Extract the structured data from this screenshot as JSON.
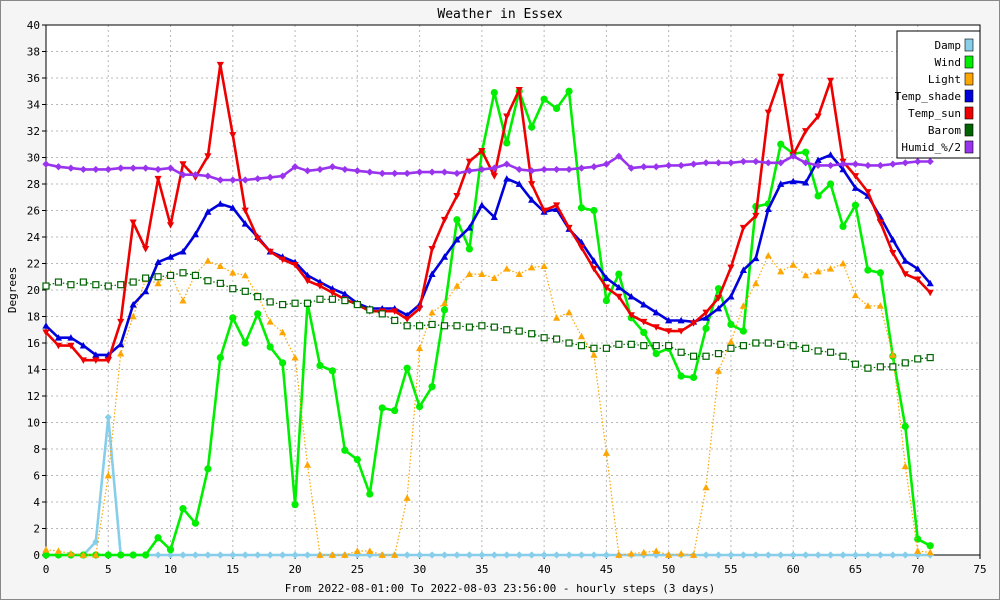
{
  "chart_data": {
    "type": "line",
    "title": "Weather in Essex",
    "xlabel": "From 2022-08-01:00 To 2022-08-03 23:56:00 - hourly steps (3 days)",
    "ylabel": "Degrees",
    "xlim": [
      0,
      75
    ],
    "ylim": [
      0,
      40
    ],
    "x_ticks": [
      0,
      5,
      10,
      15,
      20,
      25,
      30,
      35,
      40,
      45,
      50,
      55,
      60,
      65,
      70,
      75
    ],
    "y_ticks": [
      0,
      2,
      4,
      6,
      8,
      10,
      12,
      14,
      16,
      18,
      20,
      22,
      24,
      26,
      28,
      30,
      32,
      34,
      36,
      38,
      40
    ],
    "grid": true,
    "legend_position": "top-right",
    "x": [
      0,
      1,
      2,
      3,
      4,
      5,
      6,
      7,
      8,
      9,
      10,
      11,
      12,
      13,
      14,
      15,
      16,
      17,
      18,
      19,
      20,
      21,
      22,
      23,
      24,
      25,
      26,
      27,
      28,
      29,
      30,
      31,
      32,
      33,
      34,
      35,
      36,
      37,
      38,
      39,
      40,
      41,
      42,
      43,
      44,
      45,
      46,
      47,
      48,
      49,
      50,
      51,
      52,
      53,
      54,
      55,
      56,
      57,
      58,
      59,
      60,
      61,
      62,
      63,
      64,
      65,
      66,
      67,
      68,
      69,
      70,
      71
    ],
    "series": [
      {
        "name": "Damp",
        "color": "#87ceeb",
        "style": "solid",
        "marker": "diamond",
        "values": [
          0,
          0,
          0,
          0,
          1,
          10.4,
          0,
          0,
          0,
          0,
          0,
          0,
          0,
          0,
          0,
          0,
          0,
          0,
          0,
          0,
          0,
          0,
          0,
          0,
          0,
          0,
          0,
          0,
          0,
          0,
          0,
          0,
          0,
          0,
          0,
          0,
          0,
          0,
          0,
          0,
          0,
          0,
          0,
          0,
          0,
          0,
          0,
          0,
          0,
          0,
          0,
          0,
          0,
          0,
          0,
          0,
          0,
          0,
          0,
          0,
          0,
          0,
          0,
          0,
          0,
          0,
          0,
          0,
          0,
          0,
          0,
          0
        ]
      },
      {
        "name": "Wind",
        "color": "#00ee00",
        "style": "solid",
        "marker": "circle",
        "values": [
          0,
          0,
          0,
          0,
          0,
          0,
          0,
          0,
          0,
          1.3,
          0.4,
          3.5,
          2.4,
          6.5,
          14.9,
          17.9,
          16,
          18.2,
          15.7,
          14.5,
          3.8,
          19,
          14.3,
          13.9,
          7.9,
          7.2,
          4.6,
          11.1,
          10.9,
          14.1,
          11.2,
          12.7,
          18.5,
          25.3,
          23.1,
          30.4,
          34.9,
          31.1,
          35,
          32.3,
          34.4,
          33.7,
          35,
          26.2,
          26,
          19.2,
          21.2,
          17.9,
          16.8,
          15.2,
          15.6,
          13.5,
          13.4,
          17.1,
          20.1,
          17.4,
          16.9,
          26.3,
          26.5,
          31,
          30.3,
          30.4,
          27.1,
          28,
          24.8,
          26.4,
          21.5,
          21.3,
          15,
          9.7,
          1.2,
          0.7
        ]
      },
      {
        "name": "Light",
        "color": "#ffa500",
        "style": "dotted",
        "marker": "triangle-up",
        "values": [
          0.4,
          0.3,
          0.1,
          0,
          0,
          6,
          15.2,
          18,
          20.8,
          20.5,
          21.2,
          19.2,
          21.2,
          22.2,
          21.8,
          21.3,
          21.1,
          19.6,
          17.6,
          16.8,
          14.9,
          6.8,
          0,
          0,
          0,
          0.3,
          0.3,
          0,
          0,
          4.3,
          15.6,
          18.3,
          19,
          20.3,
          21.2,
          21.2,
          20.9,
          21.6,
          21.2,
          21.7,
          21.8,
          17.9,
          18.3,
          16.5,
          15.1,
          7.7,
          0,
          0.1,
          0.2,
          0.3,
          0,
          0.1,
          0,
          5.1,
          13.9,
          16.1,
          18.8,
          20.5,
          22.6,
          21.4,
          21.9,
          21.1,
          21.4,
          21.6,
          22,
          19.6,
          18.8,
          18.8,
          15.1,
          6.7,
          0.3,
          0.2
        ]
      },
      {
        "name": "Temp_shade",
        "color": "#0000dd",
        "style": "solid",
        "marker": "triangle-up",
        "values": [
          17.3,
          16.4,
          16.4,
          15.8,
          15.1,
          15.1,
          15.9,
          18.9,
          19.9,
          22.1,
          22.5,
          22.9,
          24.2,
          25.9,
          26.5,
          26.2,
          25,
          24,
          22.9,
          22.5,
          22.1,
          21.1,
          20.6,
          20.1,
          19.7,
          19,
          18.6,
          18.6,
          18.6,
          18.1,
          18.9,
          21.2,
          22.5,
          23.8,
          24.7,
          26.4,
          25.5,
          28.4,
          28,
          26.8,
          25.9,
          26.1,
          24.6,
          23.6,
          22.2,
          20.9,
          20.2,
          19.5,
          18.9,
          18.3,
          17.7,
          17.7,
          17.6,
          17.9,
          18.6,
          19.5,
          21.5,
          22.4,
          26.1,
          28,
          28.2,
          28.1,
          29.8,
          30.2,
          29.1,
          27.7,
          27.1,
          25.5,
          23.8,
          22.2,
          21.6,
          20.5
        ]
      },
      {
        "name": "Temp_sun",
        "color": "#ee0000",
        "style": "solid",
        "marker": "triangle-down",
        "values": [
          16.8,
          15.8,
          15.8,
          14.7,
          14.7,
          14.7,
          17.6,
          25.1,
          23.1,
          28.4,
          24.9,
          29.5,
          28.5,
          30.1,
          37,
          31.7,
          26,
          23.9,
          22.9,
          22.3,
          21.9,
          20.7,
          20.3,
          19.8,
          19.3,
          18.9,
          18.4,
          18.4,
          18.4,
          17.8,
          18.6,
          23.1,
          25.3,
          27.1,
          29.7,
          30.5,
          28.6,
          33.1,
          35.1,
          28,
          26,
          26.4,
          24.7,
          23.2,
          21.6,
          20.2,
          19.5,
          18.1,
          17.6,
          17.2,
          16.9,
          16.9,
          17.5,
          18.3,
          19.4,
          21.7,
          24.7,
          25.6,
          33.4,
          36.1,
          30.2,
          32,
          33.1,
          35.8,
          29.7,
          28.6,
          27.4,
          25.1,
          22.8,
          21.2,
          20.8,
          19.8
        ]
      },
      {
        "name": "Barom",
        "color": "#006400",
        "style": "dotted",
        "marker": "square-open",
        "values": [
          20.3,
          20.6,
          20.4,
          20.6,
          20.4,
          20.3,
          20.4,
          20.6,
          20.9,
          21,
          21.1,
          21.3,
          21.1,
          20.7,
          20.5,
          20.1,
          19.9,
          19.5,
          19.1,
          18.9,
          19,
          19,
          19.3,
          19.3,
          19.2,
          18.9,
          18.5,
          18.2,
          17.7,
          17.3,
          17.3,
          17.4,
          17.3,
          17.3,
          17.2,
          17.3,
          17.2,
          17,
          16.9,
          16.7,
          16.4,
          16.3,
          16,
          15.8,
          15.6,
          15.6,
          15.9,
          15.9,
          15.8,
          15.8,
          15.8,
          15.3,
          15,
          15,
          15.2,
          15.6,
          15.8,
          16,
          16,
          15.9,
          15.8,
          15.6,
          15.4,
          15.3,
          15,
          14.4,
          14.1,
          14.2,
          14.2,
          14.5,
          14.8,
          14.9
        ]
      },
      {
        "name": "Humid_%/2",
        "color": "#9933ee",
        "style": "solid",
        "marker": "diamond",
        "values": [
          29.5,
          29.3,
          29.2,
          29.1,
          29.1,
          29.1,
          29.2,
          29.2,
          29.2,
          29.1,
          29.2,
          28.7,
          28.7,
          28.6,
          28.3,
          28.3,
          28.3,
          28.4,
          28.5,
          28.6,
          29.3,
          29,
          29.1,
          29.3,
          29.1,
          29,
          28.9,
          28.8,
          28.8,
          28.8,
          28.9,
          28.9,
          28.9,
          28.8,
          29,
          29.1,
          29.2,
          29.5,
          29.1,
          29,
          29.1,
          29.1,
          29.1,
          29.2,
          29.3,
          29.5,
          30.1,
          29.2,
          29.3,
          29.3,
          29.4,
          29.4,
          29.5,
          29.6,
          29.6,
          29.6,
          29.7,
          29.7,
          29.6,
          29.6,
          30.1,
          29.6,
          29.4,
          29.4,
          29.5,
          29.5,
          29.4,
          29.4,
          29.5,
          29.6,
          29.7,
          29.7
        ]
      }
    ]
  }
}
